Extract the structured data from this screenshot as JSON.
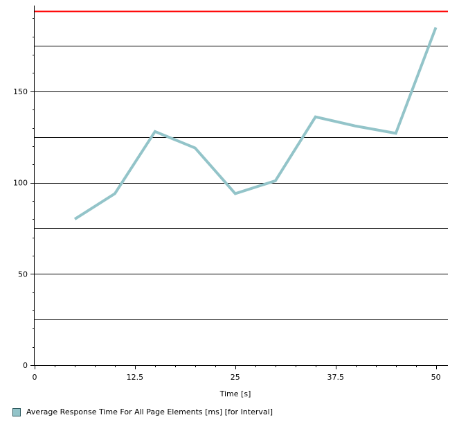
{
  "chart_data": {
    "type": "line",
    "xlabel": "Time [s]",
    "ylabel": "",
    "xlim": [
      0,
      51.5
    ],
    "ylim": [
      0,
      197
    ],
    "x_ticks": [
      0,
      12.5,
      25,
      37.5,
      50
    ],
    "x_tick_labels": [
      "0",
      "12.5",
      "25",
      "37.5",
      "50"
    ],
    "y_ticks": [
      0,
      50,
      100,
      150
    ],
    "y_tick_labels": [
      "0",
      "50",
      "100",
      "150"
    ],
    "gridlines_y": [
      25,
      50,
      75,
      100,
      125,
      150,
      175
    ],
    "threshold": 194,
    "threshold_color": "#ff0000",
    "grid": true,
    "legend_position": "bottom-left",
    "series": [
      {
        "name": "Average Response Time For All Page Elements [ms] [for Interval]",
        "color": "#93c4c9",
        "x": [
          5,
          10,
          15,
          20,
          25,
          30,
          35,
          40,
          45,
          50
        ],
        "y": [
          80,
          94,
          128,
          119,
          94,
          101,
          136,
          131,
          127,
          185
        ]
      }
    ]
  }
}
